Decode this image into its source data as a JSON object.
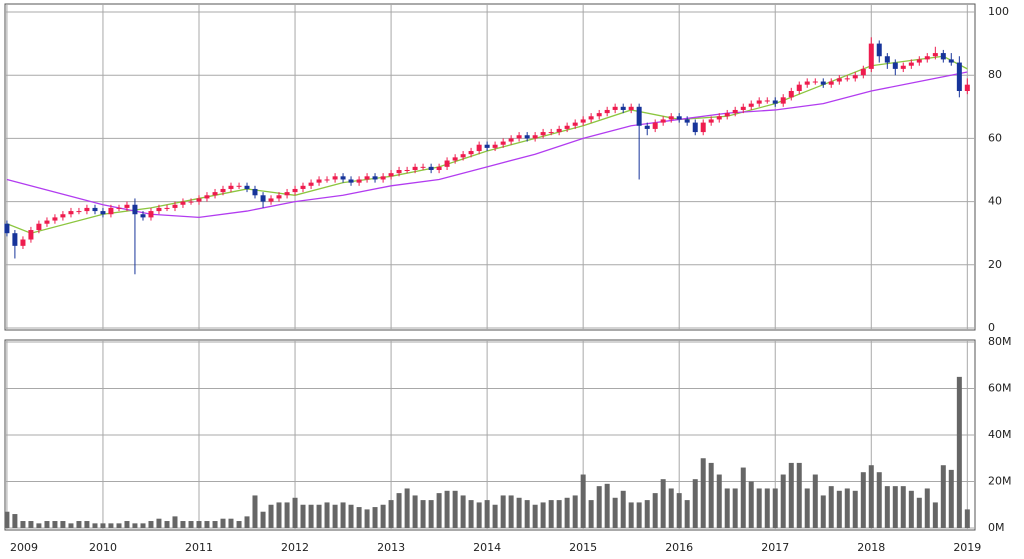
{
  "chart_data": {
    "type": "candlestick",
    "x": [
      2009,
      2009.083,
      2009.167,
      2009.25,
      2009.333,
      2009.417,
      2009.5,
      2009.583,
      2009.667,
      2009.75,
      2009.833,
      2009.917,
      2010,
      2010.083,
      2010.167,
      2010.25,
      2010.333,
      2010.417,
      2010.5,
      2010.583,
      2010.667,
      2010.75,
      2010.833,
      2010.917,
      2011,
      2011.083,
      2011.167,
      2011.25,
      2011.333,
      2011.417,
      2011.5,
      2011.583,
      2011.667,
      2011.75,
      2011.833,
      2011.917,
      2012,
      2012.083,
      2012.167,
      2012.25,
      2012.333,
      2012.417,
      2012.5,
      2012.583,
      2012.667,
      2012.75,
      2012.833,
      2012.917,
      2013,
      2013.083,
      2013.167,
      2013.25,
      2013.333,
      2013.417,
      2013.5,
      2013.583,
      2013.667,
      2013.75,
      2013.833,
      2013.917,
      2014,
      2014.083,
      2014.167,
      2014.25,
      2014.333,
      2014.417,
      2014.5,
      2014.583,
      2014.667,
      2014.75,
      2014.833,
      2014.917,
      2015,
      2015.083,
      2015.167,
      2015.25,
      2015.333,
      2015.417,
      2015.5,
      2015.583,
      2015.667,
      2015.75,
      2015.833,
      2015.917,
      2016,
      2016.083,
      2016.167,
      2016.25,
      2016.333,
      2016.417,
      2016.5,
      2016.583,
      2016.667,
      2016.75,
      2016.833,
      2016.917,
      2017,
      2017.083,
      2017.167,
      2017.25,
      2017.333,
      2017.417,
      2017.5,
      2017.583,
      2017.667,
      2017.75,
      2017.833,
      2017.917,
      2018,
      2018.083,
      2018.167,
      2018.25,
      2018.333,
      2018.417,
      2018.5,
      2018.583,
      2018.667,
      2018.75,
      2018.833,
      2018.917,
      2019
    ],
    "open": [
      33,
      30,
      26,
      28,
      31,
      33,
      34,
      35,
      36,
      37,
      37,
      38,
      37,
      36,
      38,
      38,
      39,
      36,
      35,
      37,
      38,
      38,
      39,
      40,
      40,
      41,
      42,
      43,
      44,
      45,
      45,
      44,
      42,
      40,
      41,
      42,
      43,
      44,
      45,
      46,
      47,
      47,
      48,
      47,
      46,
      47,
      48,
      47,
      48,
      49,
      50,
      50,
      51,
      51,
      50,
      51,
      53,
      54,
      55,
      56,
      58,
      57,
      58,
      59,
      60,
      61,
      60,
      61,
      62,
      62,
      63,
      64,
      65,
      66,
      67,
      68,
      69,
      70,
      69,
      70,
      64,
      63,
      65,
      66,
      67,
      66,
      65,
      62,
      65,
      66,
      67,
      68,
      69,
      70,
      71,
      72,
      72,
      71,
      73,
      75,
      77,
      78,
      78,
      77,
      78,
      79,
      79,
      80,
      82,
      90,
      86,
      84,
      82,
      83,
      84,
      85,
      86,
      87,
      85,
      84,
      75
    ],
    "high": [
      34,
      31,
      29,
      32,
      34,
      35,
      36,
      37,
      38,
      38,
      39,
      39,
      38,
      39,
      39,
      40,
      41,
      37,
      38,
      39,
      39,
      40,
      41,
      41,
      42,
      43,
      44,
      45,
      46,
      46,
      46,
      45,
      43,
      42,
      43,
      44,
      45,
      46,
      47,
      48,
      48,
      49,
      49,
      48,
      48,
      49,
      49,
      49,
      50,
      51,
      51,
      52,
      52,
      52,
      52,
      54,
      55,
      56,
      57,
      59,
      59,
      59,
      60,
      61,
      62,
      62,
      62,
      63,
      63,
      64,
      65,
      66,
      67,
      68,
      69,
      70,
      71,
      71,
      71,
      71,
      65,
      66,
      67,
      68,
      68,
      67,
      66,
      66,
      67,
      68,
      69,
      70,
      71,
      72,
      73,
      73,
      73,
      74,
      76,
      78,
      79,
      79,
      79,
      79,
      80,
      80,
      81,
      83,
      92,
      91,
      87,
      85,
      84,
      85,
      86,
      87,
      89,
      88,
      87,
      86,
      79
    ],
    "low": [
      29,
      22,
      25,
      27,
      30,
      32,
      33,
      34,
      35,
      36,
      36,
      36,
      35,
      35,
      37,
      37,
      17,
      34,
      34,
      36,
      37,
      37,
      38,
      39,
      39,
      40,
      41,
      42,
      43,
      44,
      43,
      41,
      38,
      39,
      40,
      41,
      42,
      43,
      44,
      45,
      46,
      46,
      46,
      45,
      45,
      46,
      46,
      46,
      47,
      48,
      49,
      49,
      50,
      49,
      49,
      50,
      52,
      53,
      54,
      55,
      56,
      56,
      57,
      58,
      59,
      59,
      59,
      60,
      61,
      61,
      62,
      63,
      64,
      65,
      66,
      67,
      68,
      68,
      68,
      47,
      61,
      62,
      64,
      65,
      65,
      64,
      61,
      61,
      64,
      65,
      66,
      67,
      68,
      69,
      70,
      71,
      70,
      70,
      72,
      74,
      76,
      77,
      76,
      76,
      77,
      78,
      78,
      79,
      81,
      84,
      82,
      80,
      81,
      82,
      83,
      84,
      85,
      84,
      83,
      73,
      74
    ],
    "close": [
      30,
      26,
      28,
      31,
      33,
      34,
      35,
      36,
      37,
      37,
      38,
      37,
      36,
      38,
      38,
      39,
      36,
      35,
      37,
      38,
      38,
      39,
      40,
      40,
      41,
      42,
      43,
      44,
      45,
      45,
      44,
      42,
      40,
      41,
      42,
      43,
      44,
      45,
      46,
      47,
      47,
      48,
      47,
      46,
      47,
      48,
      47,
      48,
      49,
      50,
      50,
      51,
      51,
      50,
      51,
      53,
      54,
      55,
      56,
      58,
      57,
      58,
      59,
      60,
      61,
      60,
      61,
      62,
      62,
      63,
      64,
      65,
      66,
      67,
      68,
      69,
      70,
      69,
      70,
      64,
      63,
      65,
      66,
      67,
      66,
      65,
      62,
      65,
      66,
      67,
      68,
      69,
      70,
      71,
      72,
      72,
      71,
      73,
      75,
      77,
      78,
      78,
      77,
      78,
      79,
      79,
      80,
      82,
      90,
      86,
      84,
      82,
      83,
      84,
      85,
      86,
      87,
      85,
      84,
      75,
      77
    ],
    "up_color": "#ee1c4e",
    "down_color": "#17349a",
    "lines": [
      {
        "color": "#8cc63f",
        "x": [
          2009,
          2009.25,
          2010,
          2010.5,
          2011,
          2011.5,
          2012,
          2012.5,
          2013,
          2013.5,
          2014,
          2014.5,
          2015,
          2015.5,
          2016,
          2016.5,
          2017,
          2017.5,
          2018,
          2018.5,
          2018.75,
          2019
        ],
        "values": [
          33,
          30,
          36,
          38,
          41,
          44,
          42,
          46,
          48,
          51,
          56,
          60,
          64,
          69,
          66,
          67,
          71,
          77,
          83,
          85,
          86,
          82
        ]
      },
      {
        "color": "#b23cf0",
        "x": [
          2009,
          2009.5,
          2010,
          2010.5,
          2011,
          2011.5,
          2012,
          2012.5,
          2013,
          2013.5,
          2014,
          2014.5,
          2015,
          2015.5,
          2016,
          2016.5,
          2017,
          2017.5,
          2018,
          2018.5,
          2019
        ],
        "values": [
          47,
          43,
          39,
          36,
          35,
          37,
          40,
          42,
          45,
          47,
          51,
          55,
          60,
          64,
          66,
          68,
          69,
          71,
          75,
          78,
          81
        ]
      }
    ],
    "xlim": [
      2008.98,
      2019.08
    ],
    "xticks": [
      2009,
      2010,
      2011,
      2012,
      2013,
      2014,
      2015,
      2016,
      2017,
      2018,
      2019
    ],
    "ylim": [
      0,
      100
    ],
    "yticks": [
      0,
      20,
      40,
      60,
      80,
      100
    ],
    "grid": true,
    "volume": {
      "color": "#666666",
      "values": [
        7,
        6,
        3,
        3,
        2,
        3,
        3,
        3,
        2,
        3,
        3,
        2,
        2,
        2,
        2,
        3,
        2,
        2,
        3,
        4,
        3,
        5,
        3,
        3,
        3,
        3,
        3,
        4,
        4,
        3,
        5,
        14,
        7,
        10,
        11,
        11,
        13,
        10,
        10,
        10,
        11,
        10,
        11,
        10,
        9,
        8,
        9,
        10,
        12,
        15,
        17,
        14,
        12,
        12,
        15,
        16,
        16,
        14,
        12,
        11,
        12,
        10,
        14,
        14,
        13,
        12,
        10,
        11,
        12,
        12,
        13,
        14,
        23,
        12,
        18,
        19,
        13,
        16,
        11,
        11,
        12,
        15,
        21,
        17,
        15,
        12,
        21,
        30,
        28,
        23,
        17,
        17,
        26,
        20,
        17,
        17,
        17,
        23,
        28,
        28,
        17,
        23,
        14,
        18,
        16,
        17,
        16,
        24,
        27,
        24,
        18,
        18,
        18,
        16,
        13,
        17,
        11,
        27,
        25,
        65,
        8
      ],
      "ylim": [
        0,
        80
      ],
      "yticks": [
        {
          "value": 0,
          "label": "0M"
        },
        {
          "value": 20,
          "label": "20M"
        },
        {
          "value": 40,
          "label": "40M"
        },
        {
          "value": 60,
          "label": "60M"
        },
        {
          "value": 80,
          "label": "80M"
        }
      ]
    }
  }
}
